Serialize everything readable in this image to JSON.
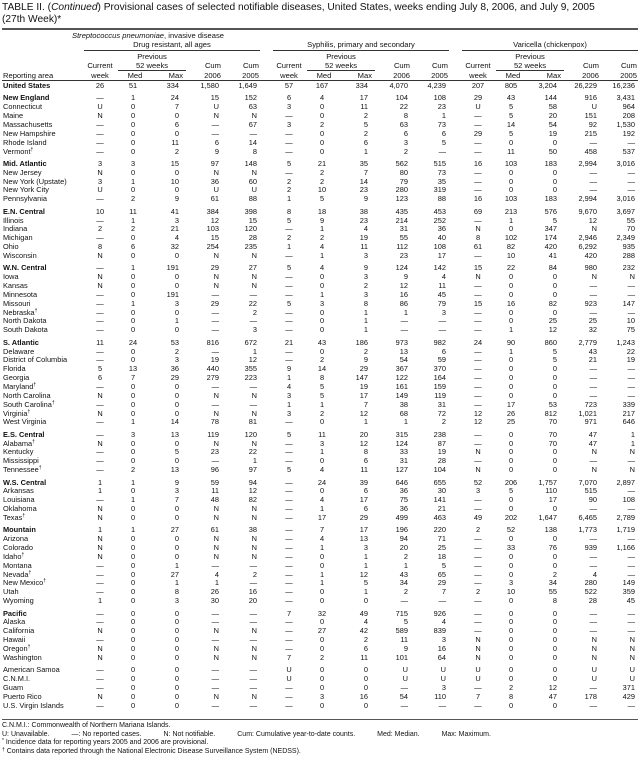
{
  "title": {
    "prefix": "TABLE II. (",
    "continued": "Continued",
    "text": ") Provisional cases of selected notifiable diseases, United States, weeks ending July 8, 2006, and July 9, 2005",
    "week": "(27th Week)*"
  },
  "header": {
    "super_group": "Streptococcus pneumoniae, invasive disease",
    "groups": [
      "Drug resistant, all ages",
      "Syphilis, primary and secondary",
      "Varicella (chickenpox)"
    ],
    "previous": "Previous",
    "weeks52": "52 weeks",
    "current": "Current",
    "week": "week",
    "med": "Med",
    "max": "Max",
    "cum": "Cum",
    "y2006": "2006",
    "y2005": "2005",
    "reporting_area": "Reporting area"
  },
  "rows": [
    {
      "area": "United States",
      "region": true,
      "v": [
        "26",
        "51",
        "334",
        "1,580",
        "1,649",
        "57",
        "167",
        "334",
        "4,070",
        "4,239",
        "207",
        "805",
        "3,204",
        "26,229",
        "16,236"
      ]
    },
    {
      "spacer": true
    },
    {
      "area": "New England",
      "region": true,
      "v": [
        "—",
        "1",
        "24",
        "15",
        "152",
        "6",
        "4",
        "17",
        "104",
        "108",
        "29",
        "43",
        "144",
        "916",
        "3,431"
      ]
    },
    {
      "area": "Connecticut",
      "v": [
        "U",
        "0",
        "7",
        "U",
        "63",
        "3",
        "0",
        "11",
        "22",
        "23",
        "U",
        "5",
        "58",
        "U",
        "964"
      ]
    },
    {
      "area": "Maine",
      "v": [
        "N",
        "0",
        "0",
        "N",
        "N",
        "—",
        "0",
        "2",
        "8",
        "1",
        "—",
        "5",
        "20",
        "151",
        "208"
      ]
    },
    {
      "area": "Massachusetts",
      "v": [
        "—",
        "0",
        "6",
        "—",
        "67",
        "3",
        "2",
        "5",
        "63",
        "73",
        "—",
        "14",
        "54",
        "92",
        "1,530"
      ]
    },
    {
      "area": "New Hampshire",
      "v": [
        "—",
        "0",
        "0",
        "—",
        "—",
        "—",
        "0",
        "2",
        "6",
        "6",
        "29",
        "5",
        "19",
        "215",
        "192"
      ]
    },
    {
      "area": "Rhode Island",
      "v": [
        "—",
        "0",
        "11",
        "6",
        "14",
        "—",
        "0",
        "6",
        "3",
        "5",
        "—",
        "0",
        "0",
        "—",
        "—"
      ]
    },
    {
      "area": "Vermont",
      "sup": "†",
      "v": [
        "—",
        "0",
        "2",
        "9",
        "8",
        "—",
        "0",
        "1",
        "2",
        "—",
        "—",
        "11",
        "50",
        "458",
        "537"
      ]
    },
    {
      "spacer": true
    },
    {
      "area": "Mid. Atlantic",
      "region": true,
      "v": [
        "3",
        "3",
        "15",
        "97",
        "148",
        "5",
        "21",
        "35",
        "562",
        "515",
        "16",
        "103",
        "183",
        "2,994",
        "3,016"
      ]
    },
    {
      "area": "New Jersey",
      "v": [
        "N",
        "0",
        "0",
        "N",
        "N",
        "—",
        "2",
        "7",
        "80",
        "73",
        "—",
        "0",
        "0",
        "—",
        "—"
      ]
    },
    {
      "area": "New York (Upstate)",
      "v": [
        "3",
        "1",
        "10",
        "36",
        "60",
        "2",
        "2",
        "14",
        "79",
        "35",
        "—",
        "0",
        "0",
        "—",
        "—"
      ]
    },
    {
      "area": "New York City",
      "v": [
        "U",
        "0",
        "0",
        "U",
        "U",
        "2",
        "10",
        "23",
        "280",
        "319",
        "—",
        "0",
        "0",
        "—",
        "—"
      ]
    },
    {
      "area": "Pennsylvania",
      "v": [
        "—",
        "2",
        "9",
        "61",
        "88",
        "1",
        "5",
        "9",
        "123",
        "88",
        "16",
        "103",
        "183",
        "2,994",
        "3,016"
      ]
    },
    {
      "spacer": true
    },
    {
      "area": "E.N. Central",
      "region": true,
      "v": [
        "10",
        "11",
        "41",
        "384",
        "398",
        "8",
        "18",
        "38",
        "435",
        "453",
        "69",
        "213",
        "576",
        "9,670",
        "3,697"
      ]
    },
    {
      "area": "Illinois",
      "v": [
        "—",
        "1",
        "3",
        "12",
        "15",
        "5",
        "9",
        "23",
        "214",
        "252",
        "—",
        "1",
        "5",
        "12",
        "55"
      ]
    },
    {
      "area": "Indiana",
      "v": [
        "2",
        "2",
        "21",
        "103",
        "120",
        "—",
        "1",
        "4",
        "31",
        "36",
        "N",
        "0",
        "347",
        "N",
        "70"
      ]
    },
    {
      "area": "Michigan",
      "v": [
        "—",
        "0",
        "4",
        "15",
        "28",
        "2",
        "2",
        "19",
        "55",
        "40",
        "8",
        "102",
        "174",
        "2,946",
        "2,349"
      ]
    },
    {
      "area": "Ohio",
      "v": [
        "8",
        "6",
        "32",
        "254",
        "235",
        "1",
        "4",
        "11",
        "112",
        "108",
        "61",
        "82",
        "420",
        "6,292",
        "935"
      ]
    },
    {
      "area": "Wisconsin",
      "v": [
        "N",
        "0",
        "0",
        "N",
        "N",
        "—",
        "1",
        "3",
        "23",
        "17",
        "—",
        "10",
        "41",
        "420",
        "288"
      ]
    },
    {
      "spacer": true
    },
    {
      "area": "W.N. Central",
      "region": true,
      "v": [
        "—",
        "1",
        "191",
        "29",
        "27",
        "5",
        "4",
        "9",
        "124",
        "142",
        "15",
        "22",
        "84",
        "980",
        "232"
      ]
    },
    {
      "area": "Iowa",
      "v": [
        "N",
        "0",
        "0",
        "N",
        "N",
        "—",
        "0",
        "3",
        "9",
        "4",
        "N",
        "0",
        "0",
        "N",
        "N"
      ]
    },
    {
      "area": "Kansas",
      "v": [
        "N",
        "0",
        "0",
        "N",
        "N",
        "—",
        "0",
        "2",
        "12",
        "11",
        "—",
        "0",
        "0",
        "—",
        "—"
      ]
    },
    {
      "area": "Minnesota",
      "v": [
        "—",
        "0",
        "191",
        "—",
        "—",
        "—",
        "1",
        "3",
        "16",
        "45",
        "—",
        "0",
        "0",
        "—",
        "—"
      ]
    },
    {
      "area": "Missouri",
      "v": [
        "—",
        "1",
        "3",
        "29",
        "22",
        "5",
        "3",
        "8",
        "86",
        "79",
        "15",
        "16",
        "82",
        "923",
        "147"
      ]
    },
    {
      "area": "Nebraska",
      "sup": "†",
      "v": [
        "—",
        "0",
        "0",
        "—",
        "2",
        "—",
        "0",
        "1",
        "1",
        "3",
        "—",
        "0",
        "0",
        "—",
        "—"
      ]
    },
    {
      "area": "North Dakota",
      "v": [
        "—",
        "0",
        "1",
        "—",
        "—",
        "—",
        "0",
        "1",
        "—",
        "—",
        "—",
        "0",
        "25",
        "25",
        "10"
      ]
    },
    {
      "area": "South Dakota",
      "v": [
        "—",
        "0",
        "0",
        "—",
        "3",
        "—",
        "0",
        "1",
        "—",
        "—",
        "—",
        "1",
        "12",
        "32",
        "75"
      ]
    },
    {
      "spacer": true
    },
    {
      "area": "S. Atlantic",
      "region": true,
      "v": [
        "11",
        "24",
        "53",
        "816",
        "672",
        "21",
        "43",
        "186",
        "973",
        "982",
        "24",
        "90",
        "860",
        "2,779",
        "1,243"
      ]
    },
    {
      "area": "Delaware",
      "v": [
        "—",
        "0",
        "2",
        "—",
        "1",
        "—",
        "0",
        "2",
        "13",
        "6",
        "—",
        "1",
        "5",
        "43",
        "22"
      ]
    },
    {
      "area": "District of Columbia",
      "v": [
        "—",
        "0",
        "3",
        "19",
        "12",
        "—",
        "2",
        "9",
        "54",
        "59",
        "—",
        "0",
        "5",
        "21",
        "19"
      ]
    },
    {
      "area": "Florida",
      "v": [
        "5",
        "13",
        "36",
        "440",
        "355",
        "9",
        "14",
        "29",
        "367",
        "370",
        "—",
        "0",
        "0",
        "—",
        "—"
      ]
    },
    {
      "area": "Georgia",
      "v": [
        "6",
        "7",
        "29",
        "279",
        "223",
        "1",
        "8",
        "147",
        "122",
        "164",
        "—",
        "0",
        "0",
        "—",
        "—"
      ]
    },
    {
      "area": "Maryland",
      "sup": "†",
      "v": [
        "—",
        "0",
        "0",
        "—",
        "—",
        "4",
        "5",
        "19",
        "161",
        "159",
        "—",
        "0",
        "0",
        "—",
        "—"
      ]
    },
    {
      "area": "North Carolina",
      "v": [
        "N",
        "0",
        "0",
        "N",
        "N",
        "3",
        "5",
        "17",
        "149",
        "119",
        "—",
        "0",
        "0",
        "—",
        "—"
      ]
    },
    {
      "area": "South Carolina",
      "sup": "†",
      "v": [
        "—",
        "0",
        "0",
        "—",
        "—",
        "1",
        "1",
        "7",
        "38",
        "31",
        "—",
        "17",
        "53",
        "723",
        "339"
      ]
    },
    {
      "area": "Virginia",
      "sup": "†",
      "v": [
        "N",
        "0",
        "0",
        "N",
        "N",
        "3",
        "2",
        "12",
        "68",
        "72",
        "12",
        "26",
        "812",
        "1,021",
        "217"
      ]
    },
    {
      "area": "West Virginia",
      "v": [
        "—",
        "1",
        "14",
        "78",
        "81",
        "—",
        "0",
        "1",
        "1",
        "2",
        "12",
        "25",
        "70",
        "971",
        "646"
      ]
    },
    {
      "spacer": true
    },
    {
      "area": "E.S. Central",
      "region": true,
      "v": [
        "—",
        "3",
        "13",
        "119",
        "120",
        "5",
        "11",
        "20",
        "315",
        "238",
        "—",
        "0",
        "70",
        "47",
        "1"
      ]
    },
    {
      "area": "Alabama",
      "sup": "†",
      "v": [
        "N",
        "0",
        "0",
        "N",
        "N",
        "—",
        "3",
        "12",
        "124",
        "87",
        "—",
        "0",
        "70",
        "47",
        "1"
      ]
    },
    {
      "area": "Kentucky",
      "v": [
        "—",
        "0",
        "5",
        "23",
        "22",
        "—",
        "1",
        "8",
        "33",
        "19",
        "N",
        "0",
        "0",
        "N",
        "N"
      ]
    },
    {
      "area": "Mississippi",
      "v": [
        "—",
        "0",
        "0",
        "—",
        "1",
        "—",
        "0",
        "6",
        "31",
        "28",
        "—",
        "0",
        "0",
        "—",
        "—"
      ]
    },
    {
      "area": "Tennessee",
      "sup": "†",
      "v": [
        "—",
        "2",
        "13",
        "96",
        "97",
        "5",
        "4",
        "11",
        "127",
        "104",
        "N",
        "0",
        "0",
        "N",
        "N"
      ]
    },
    {
      "spacer": true
    },
    {
      "area": "W.S. Central",
      "region": true,
      "v": [
        "1",
        "1",
        "9",
        "59",
        "94",
        "—",
        "24",
        "39",
        "646",
        "655",
        "52",
        "206",
        "1,757",
        "7,070",
        "2,897"
      ]
    },
    {
      "area": "Arkansas",
      "v": [
        "1",
        "0",
        "3",
        "11",
        "12",
        "—",
        "0",
        "6",
        "36",
        "30",
        "3",
        "5",
        "110",
        "515",
        "—"
      ]
    },
    {
      "area": "Louisiana",
      "v": [
        "—",
        "1",
        "7",
        "48",
        "82",
        "—",
        "4",
        "17",
        "75",
        "141",
        "—",
        "0",
        "17",
        "90",
        "108"
      ]
    },
    {
      "area": "Oklahoma",
      "v": [
        "N",
        "0",
        "0",
        "N",
        "N",
        "—",
        "1",
        "6",
        "36",
        "21",
        "—",
        "0",
        "0",
        "—",
        "—"
      ]
    },
    {
      "area": "Texas",
      "sup": "†",
      "v": [
        "N",
        "0",
        "0",
        "N",
        "N",
        "—",
        "17",
        "29",
        "499",
        "463",
        "49",
        "202",
        "1,647",
        "6,465",
        "2,789"
      ]
    },
    {
      "spacer": true
    },
    {
      "area": "Mountain",
      "region": true,
      "v": [
        "1",
        "1",
        "27",
        "61",
        "38",
        "—",
        "7",
        "17",
        "196",
        "220",
        "2",
        "52",
        "138",
        "1,773",
        "1,719"
      ]
    },
    {
      "area": "Arizona",
      "v": [
        "N",
        "0",
        "0",
        "N",
        "N",
        "—",
        "4",
        "13",
        "94",
        "71",
        "—",
        "0",
        "0",
        "—",
        "—"
      ]
    },
    {
      "area": "Colorado",
      "v": [
        "N",
        "0",
        "0",
        "N",
        "N",
        "—",
        "1",
        "3",
        "20",
        "25",
        "—",
        "33",
        "76",
        "939",
        "1,166"
      ]
    },
    {
      "area": "Idaho",
      "sup": "†",
      "v": [
        "N",
        "0",
        "0",
        "N",
        "N",
        "—",
        "0",
        "1",
        "2",
        "18",
        "—",
        "0",
        "0",
        "—",
        "—"
      ]
    },
    {
      "area": "Montana",
      "v": [
        "—",
        "0",
        "1",
        "—",
        "—",
        "—",
        "0",
        "1",
        "1",
        "5",
        "—",
        "0",
        "0",
        "—",
        "—"
      ]
    },
    {
      "area": "Nevada",
      "sup": "†",
      "v": [
        "—",
        "0",
        "27",
        "4",
        "2",
        "—",
        "1",
        "12",
        "43",
        "65",
        "—",
        "0",
        "2",
        "4",
        "—"
      ]
    },
    {
      "area": "New Mexico",
      "sup": "†",
      "v": [
        "—",
        "0",
        "1",
        "1",
        "—",
        "—",
        "1",
        "5",
        "34",
        "29",
        "—",
        "3",
        "34",
        "280",
        "149"
      ]
    },
    {
      "area": "Utah",
      "v": [
        "—",
        "0",
        "8",
        "26",
        "16",
        "—",
        "0",
        "1",
        "2",
        "7",
        "2",
        "10",
        "55",
        "522",
        "359"
      ]
    },
    {
      "area": "Wyoming",
      "v": [
        "1",
        "0",
        "3",
        "30",
        "20",
        "—",
        "0",
        "0",
        "—",
        "—",
        "—",
        "0",
        "8",
        "28",
        "45"
      ]
    },
    {
      "spacer": true
    },
    {
      "area": "Pacific",
      "region": true,
      "v": [
        "—",
        "0",
        "0",
        "—",
        "—",
        "7",
        "32",
        "49",
        "715",
        "926",
        "—",
        "0",
        "0",
        "—",
        "—"
      ]
    },
    {
      "area": "Alaska",
      "v": [
        "—",
        "0",
        "0",
        "—",
        "—",
        "—",
        "0",
        "4",
        "5",
        "4",
        "—",
        "0",
        "0",
        "—",
        "—"
      ]
    },
    {
      "area": "California",
      "v": [
        "N",
        "0",
        "0",
        "N",
        "N",
        "—",
        "27",
        "42",
        "589",
        "839",
        "—",
        "0",
        "0",
        "—",
        "—"
      ]
    },
    {
      "area": "Hawaii",
      "v": [
        "—",
        "0",
        "0",
        "—",
        "—",
        "—",
        "0",
        "2",
        "11",
        "3",
        "N",
        "0",
        "0",
        "N",
        "N"
      ]
    },
    {
      "area": "Oregon",
      "sup": "†",
      "v": [
        "N",
        "0",
        "0",
        "N",
        "N",
        "—",
        "0",
        "6",
        "9",
        "16",
        "N",
        "0",
        "0",
        "N",
        "N"
      ]
    },
    {
      "area": "Washington",
      "v": [
        "N",
        "0",
        "0",
        "N",
        "N",
        "7",
        "2",
        "11",
        "101",
        "64",
        "N",
        "0",
        "0",
        "N",
        "N"
      ]
    },
    {
      "spacer": true
    },
    {
      "area": "American Samoa",
      "v": [
        "—",
        "0",
        "0",
        "—",
        "—",
        "U",
        "0",
        "0",
        "U",
        "U",
        "U",
        "0",
        "0",
        "U",
        "U"
      ]
    },
    {
      "area": "C.N.M.I.",
      "v": [
        "—",
        "0",
        "0",
        "—",
        "—",
        "U",
        "0",
        "0",
        "U",
        "U",
        "U",
        "0",
        "0",
        "U",
        "U"
      ]
    },
    {
      "area": "Guam",
      "v": [
        "—",
        "0",
        "0",
        "—",
        "—",
        "—",
        "0",
        "0",
        "—",
        "3",
        "—",
        "2",
        "12",
        "—",
        "371"
      ]
    },
    {
      "area": "Puerto Rico",
      "v": [
        "N",
        "0",
        "0",
        "N",
        "N",
        "—",
        "3",
        "16",
        "54",
        "110",
        "7",
        "8",
        "47",
        "178",
        "429"
      ]
    },
    {
      "area": "U.S. Virgin Islands",
      "v": [
        "—",
        "0",
        "0",
        "—",
        "—",
        "—",
        "0",
        "0",
        "—",
        "—",
        "—",
        "0",
        "0",
        "—",
        "—"
      ]
    }
  ],
  "footnotes": {
    "cnmi": "C.N.M.I.: Commonwealth of Northern Mariana Islands.",
    "legend": [
      "U: Unavailable.",
      "—: No reported cases.",
      "N: Not notifiable.",
      "Cum: Cumulative year-to-date counts.",
      "Med: Median.",
      "Max: Maximum."
    ],
    "star": "Incidence data for reporting years 2005 and 2006 are provisional.",
    "dagger": "Contains data reported through the National Electronic Disease Surveillance System (NEDSS)."
  }
}
